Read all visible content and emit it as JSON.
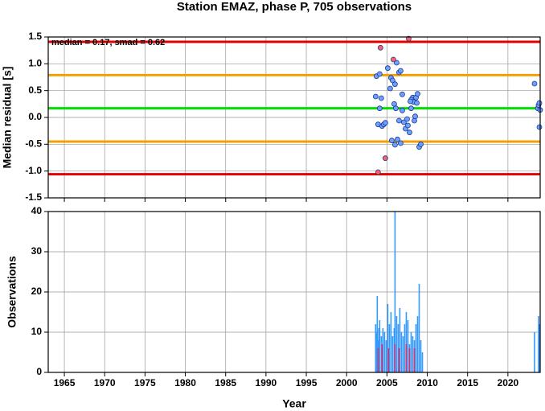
{
  "chart_data": [
    {
      "type": "scatter",
      "title": "Station EMAZ, phase P, 705 observations",
      "ylabel": "Median residual [s]",
      "annotation": "median = 0.17, smad = 0.62",
      "xlim": [
        1963,
        2024
      ],
      "xticks": [
        1965,
        1970,
        1975,
        1980,
        1985,
        1990,
        1995,
        2000,
        2005,
        2010,
        2015,
        2020
      ],
      "ylim": [
        -1.5,
        1.5
      ],
      "yticks": [
        1.5,
        {
          "value": 1.0,
          "label": "1.0"
        },
        0.5,
        {
          "value": 0.0,
          "label": "0.0"
        },
        -0.5,
        {
          "value": -1.0,
          "label": "-1.0"
        },
        -1.5
      ],
      "grid": true,
      "hlines": [
        {
          "value": 1.41,
          "color": "#e00000"
        },
        {
          "value": 0.79,
          "color": "#f5a000"
        },
        {
          "value": 0.17,
          "color": "#00e000"
        },
        {
          "value": -0.45,
          "color": "#f5a000"
        },
        {
          "value": -1.06,
          "color": "#e00000"
        }
      ],
      "series": [
        {
          "color": "#6fa0ff",
          "x": [
            2003.7,
            2004.1,
            2003.6,
            2004.3,
            2004.1,
            2003.9,
            2004.4,
            2004.6,
            2004.8,
            2005.1,
            2005.5,
            2005.4,
            2005.7,
            2006.0,
            2006.2,
            2006.5,
            2006.7,
            2006.9,
            2005.6,
            2006.0,
            2006.3,
            2006.7,
            2006.5,
            2006.9,
            2007.1,
            2005.9,
            2006.1,
            2007.3,
            2007.5,
            2007.8,
            2008.0,
            2008.2,
            2008.4,
            2008.6,
            2008.8,
            2009.0,
            2009.2,
            2008.0,
            2008.3,
            2007.6,
            2007.9,
            2008.5,
            2008.7,
            2023.3,
            2023.7,
            2023.8,
            2023.9,
            2024.0,
            2023.9
          ],
          "values": [
            0.77,
            0.81,
            0.39,
            0.36,
            0.17,
            -0.13,
            -0.16,
            -0.13,
            -0.1,
            0.92,
            0.74,
            0.54,
            0.69,
            0.62,
            1.02,
            0.84,
            0.87,
            0.43,
            -0.43,
            -0.51,
            -0.41,
            -0.48,
            -0.06,
            0.13,
            -0.09,
            0.25,
            0.17,
            -0.21,
            -0.03,
            -0.28,
            0.17,
            0.37,
            -0.06,
            0.37,
            0.44,
            -0.55,
            -0.5,
            0.33,
            0.29,
            -0.15,
            0.3,
            0.02,
            0.27,
            0.63,
            0.17,
            0.23,
            0.27,
            0.14,
            -0.18
          ]
        },
        {
          "color": "#ff6060",
          "x": [
            2004.2,
            2005.8,
            2007.7,
            2003.9,
            2004.8
          ],
          "values": [
            1.3,
            1.08,
            1.47,
            -1.02,
            -0.76
          ]
        }
      ]
    },
    {
      "type": "bar",
      "ylabel": "Observations",
      "xlabel": "Year",
      "xlim": [
        1963,
        2024
      ],
      "xticks": [
        1965,
        1970,
        1975,
        1980,
        1985,
        1990,
        1995,
        2000,
        2005,
        2010,
        2015,
        2020
      ],
      "ylim": [
        0,
        40
      ],
      "yticks": [
        0,
        10,
        20,
        30,
        40
      ],
      "grid": true,
      "series": [
        {
          "color": "#3399ff",
          "x": [
            2003.6,
            2003.7,
            2003.8,
            2003.9,
            2004.0,
            2004.1,
            2004.3,
            2004.5,
            2004.7,
            2004.9,
            2005.1,
            2005.3,
            2005.5,
            2005.7,
            2005.9,
            2006.0,
            2006.2,
            2006.4,
            2006.6,
            2006.8,
            2007.0,
            2007.2,
            2007.4,
            2007.6,
            2007.8,
            2008.0,
            2008.2,
            2008.4,
            2008.6,
            2008.8,
            2009.0,
            2009.2,
            2009.4,
            2023.3,
            2023.8,
            2023.9
          ],
          "values": [
            12,
            10,
            19,
            8,
            11,
            13,
            9,
            11,
            10,
            8,
            17,
            12,
            15,
            9,
            11,
            40,
            14,
            12,
            16,
            10,
            9,
            12,
            15,
            13,
            7,
            10,
            9,
            8,
            12,
            14,
            22,
            8,
            5,
            10,
            14,
            12
          ]
        },
        {
          "color": "#e03060",
          "x": [
            2003.9,
            2004.4,
            2005.2,
            2006.0,
            2006.5,
            2007.4,
            2007.8,
            2008.4
          ],
          "values": [
            6,
            7,
            6,
            7,
            6,
            7,
            6,
            6
          ]
        }
      ]
    }
  ]
}
